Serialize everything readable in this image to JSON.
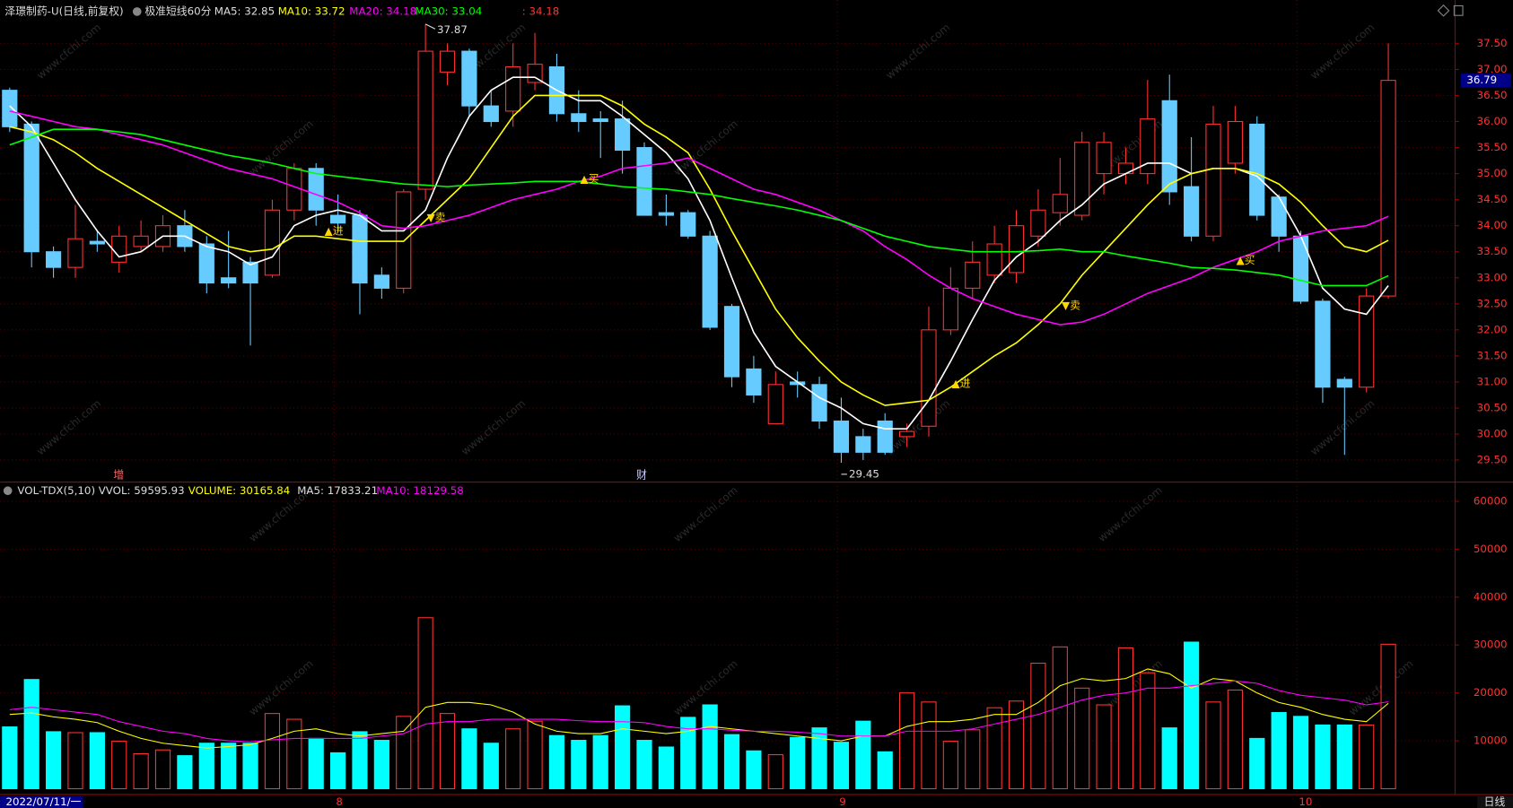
{
  "chart_data": [
    {
      "type": "candlestick",
      "title": "泽璟制药-U(日线,前复权)",
      "indicator": "极准短线60分",
      "note": ": 34.18",
      "categories": [
        "2022/07/11/一",
        null,
        null,
        null,
        null,
        null,
        null,
        null,
        null,
        null,
        null,
        null,
        null,
        null,
        null,
        "8",
        null,
        null,
        null,
        null,
        null,
        null,
        null,
        null,
        null,
        null,
        null,
        null,
        null,
        null,
        null,
        null,
        null,
        null,
        null,
        null,
        null,
        null,
        "9",
        null,
        null,
        null,
        null,
        null,
        null,
        null,
        null,
        null,
        null,
        null,
        null,
        null,
        null,
        null,
        null,
        null,
        null,
        null,
        null,
        "10",
        null,
        null,
        null,
        null
      ],
      "open": [
        36.6,
        35.95,
        33.5,
        33.2,
        33.7,
        33.3,
        33.6,
        33.6,
        34.0,
        33.65,
        33.0,
        33.3,
        33.05,
        34.3,
        35.1,
        34.2,
        34.2,
        33.05,
        32.8,
        34.7,
        36.95,
        37.35,
        36.3,
        36.2,
        36.75,
        37.05,
        36.15,
        36.05,
        36.05,
        35.5,
        34.25,
        34.25,
        33.8,
        32.45,
        31.25,
        30.2,
        31.0,
        30.95,
        30.25,
        29.95,
        30.25,
        29.95,
        30.15,
        32.0,
        32.8,
        33.05,
        33.1,
        33.8,
        34.25,
        34.2,
        35.0,
        35.0,
        35.0,
        36.4,
        34.75,
        33.8,
        35.2,
        35.95,
        34.55,
        33.8,
        32.55,
        31.05,
        30.9,
        32.65
      ],
      "high": [
        36.65,
        36.0,
        33.6,
        34.4,
        33.9,
        34.0,
        34.1,
        34.2,
        34.3,
        33.8,
        33.9,
        33.4,
        34.5,
        35.2,
        35.2,
        34.6,
        34.3,
        33.2,
        34.7,
        37.87,
        37.5,
        37.4,
        36.6,
        37.5,
        37.7,
        37.3,
        36.6,
        36.2,
        36.4,
        35.6,
        34.6,
        34.3,
        33.9,
        32.5,
        31.5,
        31.2,
        31.2,
        31.1,
        30.7,
        30.1,
        30.4,
        30.2,
        32.45,
        33.2,
        33.7,
        34.0,
        34.3,
        34.7,
        35.3,
        35.8,
        35.8,
        35.5,
        36.8,
        36.9,
        35.7,
        36.3,
        36.3,
        36.1,
        34.6,
        33.9,
        32.6,
        31.1,
        32.8,
        37.5
      ],
      "low": [
        35.8,
        33.2,
        33.0,
        33.0,
        33.5,
        33.1,
        33.5,
        33.5,
        33.5,
        32.7,
        32.8,
        31.7,
        33.0,
        34.1,
        34.0,
        33.9,
        32.3,
        32.6,
        32.7,
        34.5,
        36.7,
        36.1,
        35.9,
        35.9,
        36.6,
        36.0,
        35.8,
        35.3,
        35.0,
        34.2,
        34.0,
        33.75,
        32.0,
        30.9,
        30.6,
        30.2,
        30.7,
        30.1,
        29.45,
        29.5,
        29.6,
        29.75,
        29.95,
        31.9,
        32.6,
        32.9,
        32.9,
        33.6,
        34.0,
        34.1,
        34.6,
        34.8,
        34.8,
        34.4,
        33.7,
        33.7,
        35.0,
        34.1,
        33.5,
        32.5,
        30.6,
        29.6,
        30.8,
        32.6
      ],
      "close": [
        35.9,
        33.5,
        33.2,
        33.75,
        33.65,
        33.8,
        33.8,
        34.0,
        33.6,
        32.9,
        32.9,
        32.9,
        34.3,
        35.1,
        34.3,
        34.05,
        32.9,
        32.8,
        34.65,
        37.35,
        37.35,
        36.3,
        36.0,
        37.05,
        37.1,
        36.15,
        36.0,
        36.0,
        35.45,
        34.2,
        34.2,
        33.8,
        32.05,
        31.1,
        30.75,
        30.95,
        30.95,
        30.25,
        29.65,
        29.65,
        29.65,
        30.05,
        32.0,
        32.8,
        33.3,
        33.65,
        34.0,
        34.3,
        34.6,
        35.6,
        35.6,
        35.2,
        36.05,
        34.65,
        33.8,
        35.95,
        36.0,
        34.2,
        33.8,
        32.55,
        30.9,
        30.9,
        32.65,
        36.79
      ],
      "up_color": "#ff3232",
      "down_color": "#66ccff",
      "series": [
        {
          "name": "MA5: 32.85",
          "color": "#ffffff",
          "values": [
            36.3,
            35.9,
            35.2,
            34.5,
            33.9,
            33.4,
            33.5,
            33.8,
            33.8,
            33.6,
            33.5,
            33.25,
            33.4,
            34.0,
            34.2,
            34.3,
            34.2,
            33.9,
            33.9,
            34.3,
            35.3,
            36.1,
            36.6,
            36.85,
            36.85,
            36.6,
            36.4,
            36.4,
            36.1,
            35.75,
            35.4,
            34.9,
            34.1,
            33.0,
            31.95,
            31.3,
            31.0,
            30.7,
            30.5,
            30.2,
            30.1,
            30.1,
            30.65,
            31.4,
            32.2,
            32.95,
            33.4,
            33.7,
            34.1,
            34.4,
            34.8,
            35.0,
            35.2,
            35.2,
            35.0,
            35.1,
            35.1,
            34.95,
            34.55,
            33.8,
            32.8,
            32.4,
            32.3,
            32.85
          ]
        },
        {
          "name": "MA10: 33.72",
          "color": "#ffff00",
          "values": [
            35.9,
            35.8,
            35.65,
            35.4,
            35.1,
            34.85,
            34.6,
            34.35,
            34.1,
            33.85,
            33.6,
            33.5,
            33.55,
            33.8,
            33.8,
            33.75,
            33.7,
            33.7,
            33.7,
            34.1,
            34.5,
            34.9,
            35.5,
            36.1,
            36.5,
            36.5,
            36.5,
            36.5,
            36.3,
            35.95,
            35.7,
            35.4,
            34.7,
            33.9,
            33.15,
            32.4,
            31.85,
            31.4,
            31.0,
            30.75,
            30.55,
            30.6,
            30.65,
            30.9,
            31.2,
            31.5,
            31.75,
            32.1,
            32.5,
            33.05,
            33.5,
            33.95,
            34.4,
            34.8,
            35.0,
            35.1,
            35.1,
            35.0,
            34.8,
            34.45,
            34.0,
            33.6,
            33.5,
            33.72
          ]
        },
        {
          "name": "MA20: 34.18",
          "color": "#ff00ff",
          "values": [
            36.2,
            36.1,
            36.0,
            35.9,
            35.85,
            35.75,
            35.65,
            35.55,
            35.4,
            35.25,
            35.1,
            35.0,
            34.9,
            34.75,
            34.6,
            34.45,
            34.25,
            34.0,
            33.95,
            34.0,
            34.1,
            34.2,
            34.35,
            34.5,
            34.6,
            34.7,
            34.85,
            34.95,
            35.1,
            35.15,
            35.2,
            35.3,
            35.1,
            34.9,
            34.7,
            34.6,
            34.45,
            34.3,
            34.1,
            33.9,
            33.6,
            33.35,
            33.05,
            32.8,
            32.6,
            32.45,
            32.3,
            32.2,
            32.1,
            32.15,
            32.3,
            32.5,
            32.7,
            32.85,
            33.0,
            33.2,
            33.35,
            33.5,
            33.7,
            33.8,
            33.9,
            33.95,
            34.0,
            34.18
          ]
        },
        {
          "name": "MA30: 33.04",
          "color": "#00ff00",
          "values": [
            35.55,
            35.7,
            35.85,
            35.85,
            35.85,
            35.8,
            35.75,
            35.65,
            35.55,
            35.45,
            35.35,
            35.28,
            35.2,
            35.1,
            35.0,
            34.95,
            34.9,
            34.85,
            34.8,
            34.78,
            34.75,
            34.78,
            34.8,
            34.82,
            34.85,
            34.85,
            34.85,
            34.8,
            34.75,
            34.72,
            34.7,
            34.65,
            34.6,
            34.52,
            34.45,
            34.38,
            34.3,
            34.2,
            34.1,
            33.95,
            33.8,
            33.7,
            33.6,
            33.55,
            33.5,
            33.5,
            33.5,
            33.52,
            33.55,
            33.5,
            33.5,
            33.42,
            33.35,
            33.28,
            33.2,
            33.18,
            33.15,
            33.1,
            33.05,
            32.95,
            32.85,
            32.85,
            32.85,
            33.04
          ]
        }
      ],
      "ylim": [
        29.17,
        38.0
      ],
      "yticks": [
        {
          "value": 29.5,
          "label": "29.50"
        },
        {
          "value": 30,
          "label": "30.00"
        },
        {
          "value": 30.5,
          "label": "30.50"
        },
        {
          "value": 31,
          "label": "31.00"
        },
        {
          "value": 31.5,
          "label": "31.50"
        },
        {
          "value": 32,
          "label": "32.00"
        },
        {
          "value": 32.5,
          "label": "32.50"
        },
        {
          "value": 33,
          "label": "33.00"
        },
        {
          "value": 33.5,
          "label": "33.50"
        },
        {
          "value": 34,
          "label": "34.00"
        },
        {
          "value": 34.5,
          "label": "34.50"
        },
        {
          "value": 35,
          "label": "35.00"
        },
        {
          "value": 35.5,
          "label": "35.50"
        },
        {
          "value": 36,
          "label": "36.00"
        },
        {
          "value": 36.5,
          "label": "36.50"
        },
        {
          "value": 37,
          "label": "37.00"
        },
        {
          "value": 37.5,
          "label": "37.50"
        }
      ],
      "grid": true,
      "signals": [
        "▲进",
        "▼卖",
        "▲买",
        "▲进",
        "▼卖",
        "▲买"
      ],
      "markers": [
        "增",
        "财"
      ],
      "period": "日线",
      "watermark": "www.cfchi.com"
    },
    {
      "type": "bar",
      "title": "VOL-TDX(5,10)",
      "subtitle": "VVOL: 59595.93",
      "name": "VOLUME: 30165.84",
      "up_color": "#ff3232",
      "down_color": "#00ffff",
      "name_color": "#ffff00",
      "values": [
        12900,
        22800,
        11900,
        11700,
        11700,
        9900,
        7300,
        8100,
        6900,
        9500,
        9500,
        9500,
        15700,
        14500,
        10500,
        7500,
        11900,
        10100,
        15100,
        35700,
        15700,
        12500,
        9500,
        12500,
        14100,
        11100,
        10100,
        11100,
        17300,
        10100,
        8700,
        14900,
        17500,
        11300,
        7900,
        7100,
        10700,
        12700,
        9700,
        14100,
        7700,
        20000,
        18100,
        9900,
        12300,
        16900,
        18300,
        26200,
        29600,
        21000,
        17500,
        29400,
        24200,
        12700,
        30600,
        18100,
        20600,
        10500,
        15900,
        15100,
        13300,
        13300,
        13300,
        30165.84
      ],
      "series": [
        {
          "name": "MA5: 17833.21",
          "color": "#ffff00",
          "values": [
            15500,
            15800,
            15000,
            14500,
            13800,
            12000,
            10500,
            9500,
            9000,
            8500,
            8800,
            9200,
            10500,
            12000,
            12500,
            11500,
            11000,
            11500,
            12000,
            17000,
            18000,
            18000,
            17500,
            16000,
            13500,
            12000,
            11500,
            11500,
            12500,
            12000,
            11500,
            12000,
            13000,
            12500,
            12000,
            11500,
            11000,
            10500,
            10000,
            11000,
            11000,
            13000,
            14000,
            14000,
            14500,
            15500,
            15500,
            18000,
            21500,
            23000,
            22500,
            23000,
            25000,
            24000,
            21000,
            23000,
            22500,
            20000,
            18000,
            17000,
            15500,
            14500,
            14000,
            17833.21
          ]
        },
        {
          "name": "MA10: 18129.58",
          "color": "#ff00ff",
          "values": [
            16500,
            17000,
            16500,
            16000,
            15500,
            14000,
            13000,
            12000,
            11500,
            10500,
            10000,
            9800,
            10200,
            10500,
            10500,
            10500,
            10500,
            11000,
            11500,
            13500,
            14000,
            14000,
            14500,
            14500,
            14500,
            14500,
            14200,
            14000,
            14000,
            13800,
            13000,
            12500,
            12500,
            12200,
            12000,
            12000,
            11800,
            11500,
            11000,
            11000,
            11000,
            12000,
            12000,
            12000,
            12500,
            13500,
            14500,
            15500,
            17000,
            18500,
            19500,
            20000,
            21000,
            21000,
            21500,
            22000,
            22500,
            22000,
            20500,
            19500,
            19000,
            18500,
            17500,
            18129.58
          ]
        }
      ],
      "ylim": [
        0,
        63000
      ],
      "yticks": [
        10000,
        20000,
        30000,
        40000,
        50000,
        60000
      ],
      "grid": true
    }
  ]
}
